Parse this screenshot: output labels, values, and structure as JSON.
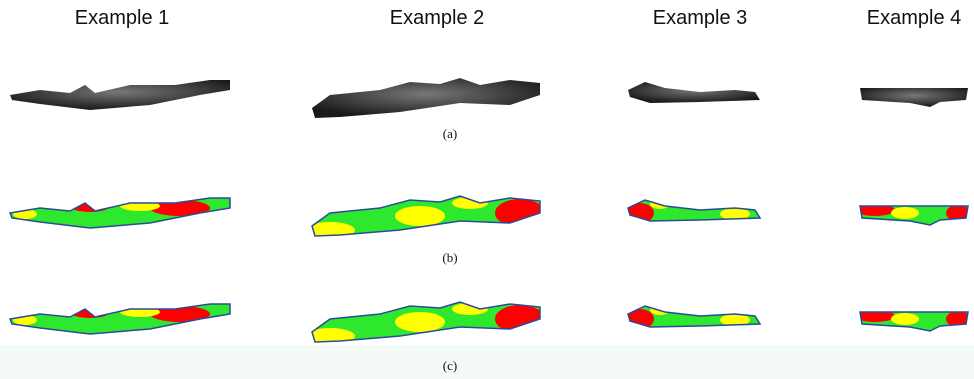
{
  "columns": [
    "Example 1",
    "Example 2",
    "Example 3",
    "Example 4"
  ],
  "rows": [
    "(a)",
    "(b)",
    "(c)"
  ]
}
